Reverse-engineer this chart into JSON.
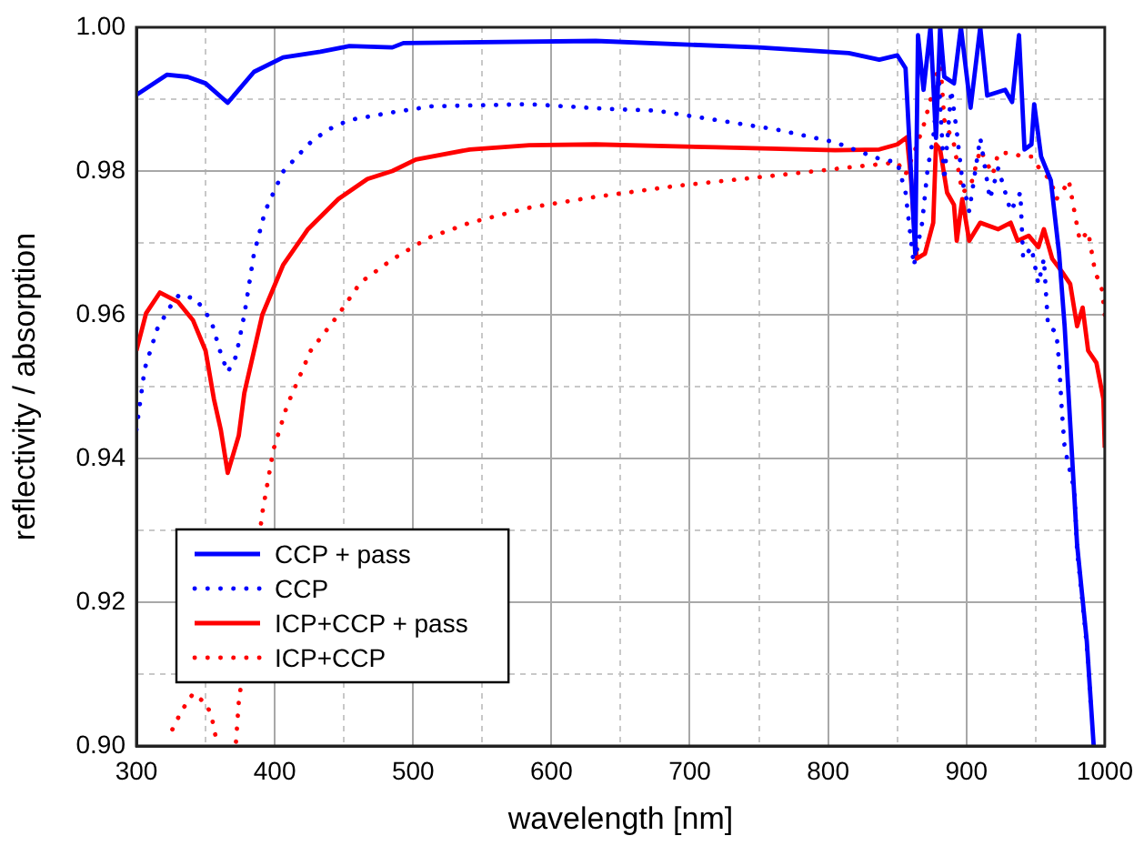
{
  "chart_data": {
    "type": "line",
    "xlabel": "wavelength [nm]",
    "ylabel": "reflectivity / absorption",
    "xlim": [
      300,
      1000
    ],
    "xticks": [
      300,
      {
        "value": 350,
        "label": null
      },
      400,
      {
        "value": 450,
        "label": null
      },
      500,
      {
        "value": 550,
        "label": null
      },
      600,
      {
        "value": 650,
        "label": null
      },
      700,
      {
        "value": 750,
        "label": null
      },
      800,
      {
        "value": 850,
        "label": null
      },
      900,
      {
        "value": 950,
        "label": null
      },
      1000
    ],
    "ylim": [
      0.9,
      1.0
    ],
    "yticks": [
      {
        "value": 0.9,
        "label": "0.90"
      },
      {
        "value": 0.91,
        "label": null
      },
      {
        "value": 0.92,
        "label": "0.92"
      },
      {
        "value": 0.93,
        "label": null
      },
      {
        "value": 0.94,
        "label": "0.94"
      },
      {
        "value": 0.95,
        "label": null
      },
      {
        "value": 0.96,
        "label": "0.96"
      },
      {
        "value": 0.97,
        "label": null
      },
      {
        "value": 0.98,
        "label": "0.98"
      },
      {
        "value": 0.99,
        "label": null
      },
      {
        "value": 1.0,
        "label": "1.00"
      }
    ],
    "grid": true,
    "legend": "bottom left",
    "marker": "none",
    "series": [
      {
        "name": "CCP + pass",
        "color": "#0000ff",
        "line_style": "solid",
        "x": [
          300,
          322,
          337,
          350,
          366,
          385,
          406,
          433,
          454,
          485,
          493,
          632,
          750,
          815,
          837,
          850,
          856,
          863,
          865,
          869,
          874,
          878,
          881,
          884,
          891,
          896,
          903,
          910,
          915,
          928,
          933,
          938,
          942,
          947,
          949,
          954,
          961,
          967,
          971,
          974,
          980,
          987,
          992
        ],
        "values": [
          0.9906,
          0.9934,
          0.9931,
          0.9922,
          0.9895,
          0.9938,
          0.9958,
          0.9966,
          0.9974,
          0.9972,
          0.9978,
          0.9981,
          0.9972,
          0.9964,
          0.9955,
          0.9961,
          0.9943,
          0.9685,
          0.9989,
          0.9913,
          1.0,
          0.9846,
          1.0,
          0.9931,
          0.9922,
          1.0,
          0.9888,
          1.0,
          0.9905,
          0.9913,
          0.9896,
          0.9989,
          0.983,
          0.9837,
          0.9893,
          0.982,
          0.9787,
          0.9685,
          0.9584,
          0.9483,
          0.928,
          0.9146,
          0.9
        ]
      },
      {
        "name": "CCP",
        "color": "#0000ff",
        "line_style": "dotted",
        "x": [
          300,
          306,
          315,
          324,
          331,
          343,
          354,
          361,
          366,
          372,
          378,
          385,
          393,
          406,
          417,
          427,
          439,
          454,
          483,
          513,
          584,
          645,
          676,
          719,
          762,
          805,
          837,
          850,
          856,
          862,
          868,
          872,
          876,
          880,
          884,
          889,
          893,
          897,
          902,
          910,
          917,
          923,
          932,
          939,
          941,
          947,
          952,
          956,
          959,
          965,
          967,
          969,
          971,
          978,
          980,
          985,
          988,
          990
        ],
        "values": [
          0.944,
          0.9525,
          0.958,
          0.961,
          0.9628,
          0.9622,
          0.9592,
          0.9546,
          0.952,
          0.9542,
          0.96,
          0.9685,
          0.9744,
          0.9799,
          0.9822,
          0.9842,
          0.9858,
          0.9871,
          0.9881,
          0.989,
          0.9893,
          0.9886,
          0.9884,
          0.9871,
          0.9858,
          0.984,
          0.9817,
          0.9812,
          0.977,
          0.9668,
          0.9728,
          0.9804,
          0.9846,
          0.9931,
          0.9787,
          0.9913,
          0.9855,
          0.9787,
          0.9744,
          0.9846,
          0.9761,
          0.9804,
          0.9744,
          0.977,
          0.9678,
          0.9694,
          0.9643,
          0.9678,
          0.9584,
          0.9576,
          0.9533,
          0.9466,
          0.9415,
          0.9356,
          0.9272,
          0.9179,
          0.912,
          0.905
        ]
      },
      {
        "name": "ICP+CCP + pass",
        "color": "#ff0000",
        "line_style": "solid",
        "x": [
          300,
          307,
          317,
          330,
          341,
          350,
          356,
          361,
          366,
          374,
          378,
          391,
          406,
          424,
          446,
          467,
          485,
          502,
          541,
          584,
          632,
          719,
          805,
          837,
          850,
          857,
          860,
          864,
          870,
          876,
          878,
          881,
          886,
          891,
          893,
          897,
          902,
          910,
          923,
          932,
          937,
          945,
          952,
          956,
          962,
          969,
          975,
          980,
          984,
          988,
          994,
          999,
          1000
        ],
        "values": [
          0.955,
          0.9602,
          0.9631,
          0.9618,
          0.9592,
          0.955,
          0.9483,
          0.944,
          0.938,
          0.9432,
          0.9491,
          0.96,
          0.9669,
          0.9719,
          0.9761,
          0.9789,
          0.98,
          0.9816,
          0.983,
          0.9836,
          0.9837,
          0.9833,
          0.9829,
          0.983,
          0.9837,
          0.9847,
          0.9787,
          0.9678,
          0.9685,
          0.9728,
          0.9837,
          0.983,
          0.977,
          0.9753,
          0.9703,
          0.9761,
          0.9703,
          0.9728,
          0.9719,
          0.9728,
          0.9703,
          0.971,
          0.9694,
          0.9719,
          0.9678,
          0.966,
          0.9643,
          0.9584,
          0.961,
          0.955,
          0.9533,
          0.9483,
          0.9415
        ]
      },
      {
        "name": "ICP+CCP",
        "color": "#ff0000",
        "line_style": "dotted",
        "x": [
          326,
          333,
          341,
          351,
          355,
          358,
          365,
          372,
          374,
          376,
          391,
          399,
          408,
          411,
          426,
          446,
          462,
          485,
          511,
          541,
          584,
          628,
          689,
          763,
          815,
          850,
          856,
          863,
          869,
          876,
          881,
          884,
          891,
          897,
          903,
          910,
          919,
          923,
          932,
          941,
          947,
          954,
          961,
          965,
          969,
          974,
          978,
          982,
          988,
          993,
          998,
          1000
        ],
        "values": [
          0.9023,
          0.905,
          0.9073,
          0.9058,
          0.9035,
          0.9006,
          null,
          0.9006,
          0.9061,
          0.909,
          0.9324,
          0.9412,
          0.9468,
          0.9483,
          0.955,
          0.96,
          0.9645,
          0.9677,
          0.9707,
          0.9728,
          0.9749,
          0.9763,
          0.9779,
          0.9794,
          0.9805,
          0.9812,
          0.9795,
          0.983,
          0.9863,
          0.9913,
          0.9956,
          0.9871,
          0.9837,
          0.977,
          0.9779,
          0.983,
          0.9795,
          0.9825,
          0.9825,
          0.982,
          0.982,
          0.98,
          0.9787,
          0.9761,
          0.977,
          0.9787,
          0.9744,
          0.9703,
          0.9716,
          0.966,
          0.9635,
          0.96
        ]
      }
    ]
  }
}
